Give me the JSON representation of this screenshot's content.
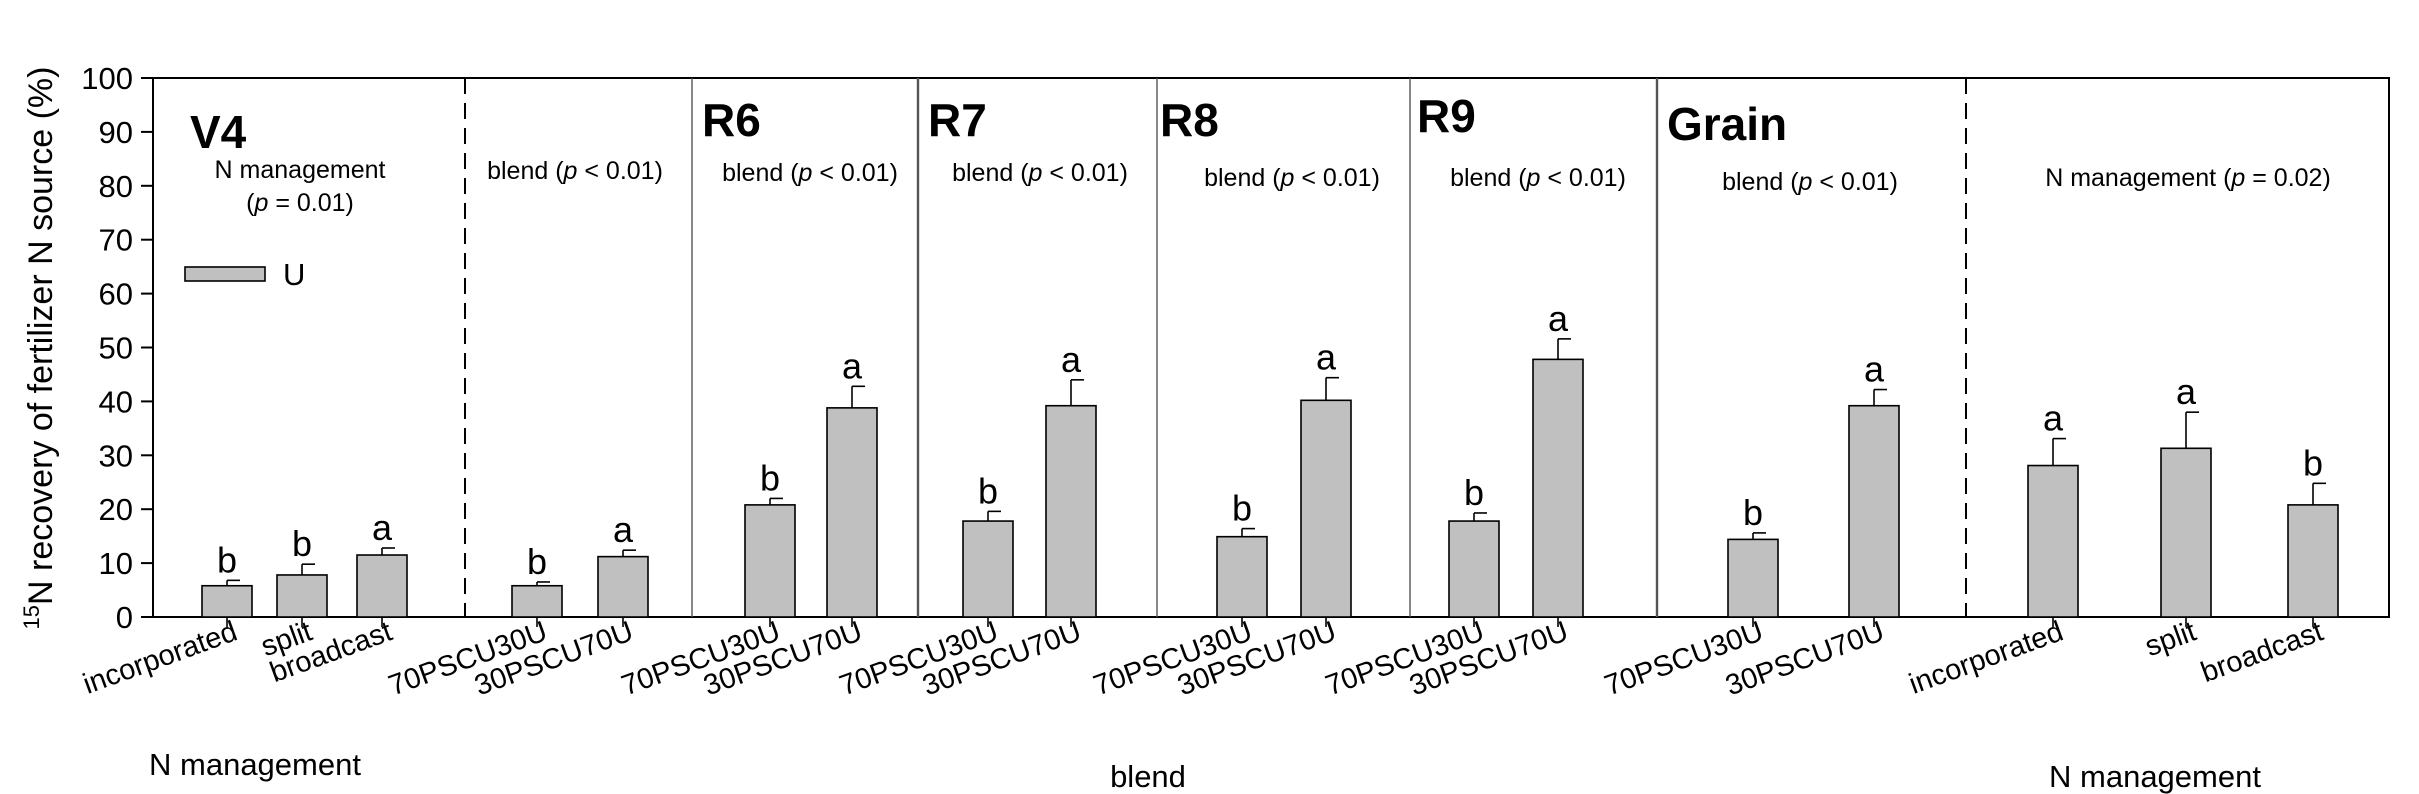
{
  "chart_data": {
    "type": "bar",
    "ylabel_sup": "15",
    "ylabel": "N recovery of fertilizer N source (%)",
    "ylim": [
      0,
      100
    ],
    "yticks": [
      0,
      10,
      20,
      30,
      40,
      50,
      60,
      70,
      80,
      90,
      100
    ],
    "legend": {
      "label": "U",
      "color": "#c0c0c0",
      "placement": "top-left"
    },
    "bar_color": "#c0c0c0",
    "panels": [
      {
        "title": "V4",
        "stat_lines": [
          "N management",
          "(p = 0.01)"
        ],
        "categories": [
          "incorporated",
          "split",
          "broadcast"
        ],
        "values": [
          5.8,
          7.8,
          11.5
        ],
        "errors": [
          1.0,
          2.0,
          1.3
        ],
        "letters": [
          "b",
          "b",
          "a"
        ]
      },
      {
        "title": "",
        "stat_lines": [
          "blend (p < 0.01)"
        ],
        "categories": [
          "70PSCU30U",
          "30PSCU70U"
        ],
        "values": [
          5.8,
          11.2
        ],
        "errors": [
          0.7,
          1.2
        ],
        "letters": [
          "b",
          "a"
        ]
      },
      {
        "title": "R6",
        "stat_lines": [
          "blend (p < 0.01)"
        ],
        "categories": [
          "70PSCU30U",
          "30PSCU70U"
        ],
        "values": [
          20.8,
          38.8
        ],
        "errors": [
          1.2,
          4.0
        ],
        "letters": [
          "b",
          "a"
        ]
      },
      {
        "title": "R7",
        "stat_lines": [
          "blend (p < 0.01)"
        ],
        "categories": [
          "70PSCU30U",
          "30PSCU70U"
        ],
        "values": [
          17.8,
          39.2
        ],
        "errors": [
          1.8,
          4.8
        ],
        "letters": [
          "b",
          "a"
        ]
      },
      {
        "title": "R8",
        "stat_lines": [
          "blend (p < 0.01)"
        ],
        "categories": [
          "70PSCU30U",
          "30PSCU70U"
        ],
        "values": [
          14.9,
          40.2
        ],
        "errors": [
          1.5,
          4.2
        ],
        "letters": [
          "b",
          "a"
        ]
      },
      {
        "title": "R9",
        "stat_lines": [
          "blend (p < 0.01)"
        ],
        "categories": [
          "70PSCU30U",
          "30PSCU70U"
        ],
        "values": [
          17.8,
          47.8
        ],
        "errors": [
          1.5,
          3.8
        ],
        "letters": [
          "b",
          "a"
        ]
      },
      {
        "title": "Grain",
        "stat_lines": [
          "blend (p < 0.01)"
        ],
        "categories": [
          "70PSCU30U",
          "30PSCU70U"
        ],
        "values": [
          14.4,
          39.2
        ],
        "errors": [
          1.2,
          3.0
        ],
        "letters": [
          "b",
          "a"
        ]
      },
      {
        "title": "",
        "stat_lines": [
          "N management (p = 0.02)"
        ],
        "categories": [
          "incorporated",
          "split",
          "broadcast"
        ],
        "values": [
          28.1,
          31.3,
          20.8
        ],
        "errors": [
          5.0,
          6.7,
          4.0
        ],
        "letters": [
          "a",
          "a",
          "b"
        ]
      }
    ],
    "group_labels": [
      "N management",
      "blend",
      "N management"
    ]
  }
}
